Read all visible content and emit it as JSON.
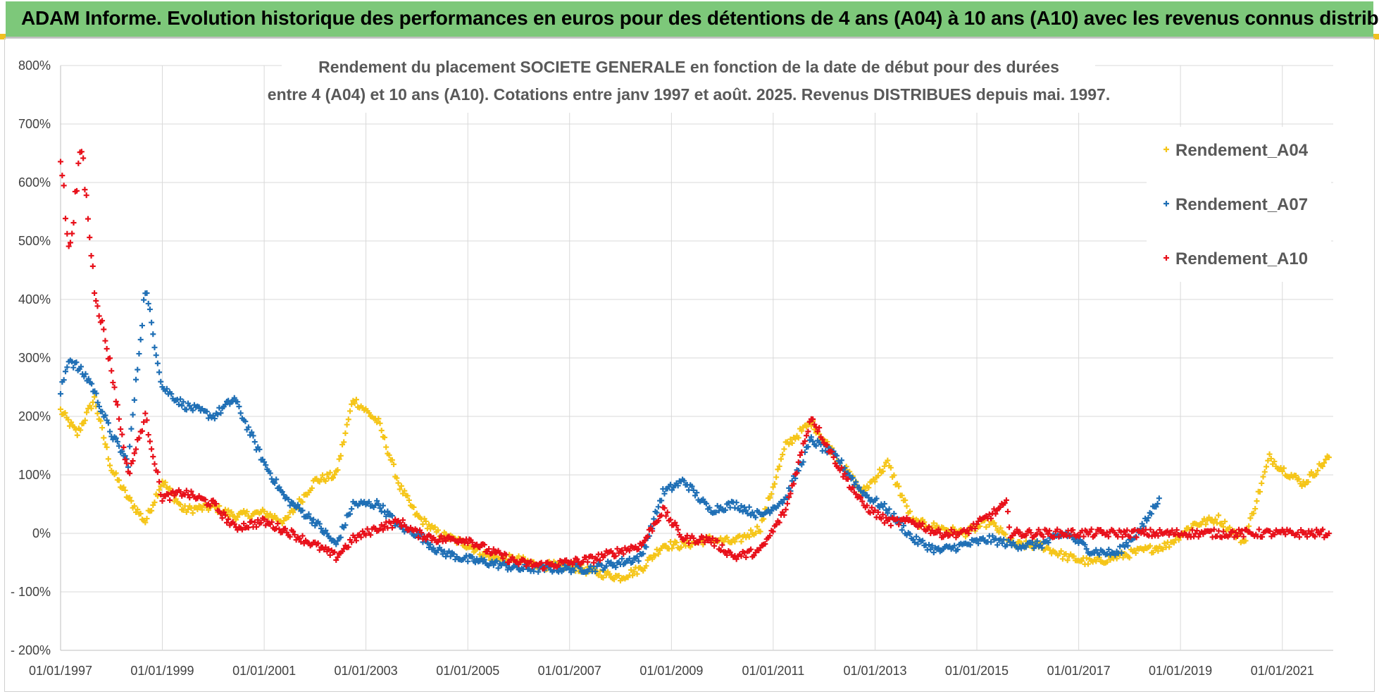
{
  "banner": {
    "title": "ADAM Informe. Evolution historique des performances en euros pour des détentions de 4 ans (A04) à 10 ans (A10) avec les revenus connus distribués"
  },
  "colors": {
    "banner_bg": "#7dc87a",
    "A04": "#f5c518",
    "A07": "#1f6fb5",
    "A10": "#e8101a",
    "grid": "#d9d9d9"
  },
  "chart_data": {
    "type": "scatter",
    "title_line1": "Rendement du placement SOCIETE GENERALE en fonction de la date de début pour des durées",
    "title_line2": "entre 4 (A04) et 10 ans (A10).  Cotations entre janv 1997 et août. 2025. Revenus DISTRIBUES depuis mai. 1997.",
    "xlim": [
      "1997-01-01",
      "2022-01-01"
    ],
    "ylim": [
      -200,
      800
    ],
    "y_ticks": [
      "800%",
      "700%",
      "600%",
      "500%",
      "400%",
      "300%",
      "200%",
      "100%",
      "0%",
      "- 100%",
      "- 200%"
    ],
    "x_ticks": [
      "01/01/1997",
      "01/01/1999",
      "01/01/2001",
      "01/01/2003",
      "01/01/2005",
      "01/01/2007",
      "01/01/2009",
      "01/01/2011",
      "01/01/2013",
      "01/01/2015",
      "01/01/2017",
      "01/01/2019",
      "01/01/2021"
    ],
    "grid": true,
    "legend_position": "top-right",
    "marker": "+",
    "series": [
      {
        "name": "Rendement_A04",
        "color": "#f5c518",
        "points": [
          [
            "1997-01-01",
            210
          ],
          [
            "1997-05-01",
            170
          ],
          [
            "1997-09-01",
            230
          ],
          [
            "1998-01-01",
            110
          ],
          [
            "1998-05-01",
            60
          ],
          [
            "1998-09-01",
            20
          ],
          [
            "1999-01-01",
            90
          ],
          [
            "1999-06-01",
            40
          ],
          [
            "2000-01-01",
            45
          ],
          [
            "2000-06-01",
            30
          ],
          [
            "2001-01-01",
            35
          ],
          [
            "2001-06-01",
            20
          ],
          [
            "2002-01-01",
            90
          ],
          [
            "2002-06-01",
            100
          ],
          [
            "2002-10-01",
            230
          ],
          [
            "2003-04-01",
            190
          ],
          [
            "2003-09-01",
            80
          ],
          [
            "2004-01-01",
            30
          ],
          [
            "2004-06-01",
            0
          ],
          [
            "2005-01-01",
            -20
          ],
          [
            "2005-06-01",
            -40
          ],
          [
            "2006-01-01",
            -45
          ],
          [
            "2006-06-01",
            -55
          ],
          [
            "2007-01-01",
            -55
          ],
          [
            "2007-06-01",
            -65
          ],
          [
            "2008-01-01",
            -75
          ],
          [
            "2008-06-01",
            -60
          ],
          [
            "2008-11-01",
            -20
          ],
          [
            "2009-04-01",
            -20
          ],
          [
            "2009-10-01",
            -10
          ],
          [
            "2010-04-01",
            -15
          ],
          [
            "2010-10-01",
            10
          ],
          [
            "2011-04-01",
            150
          ],
          [
            "2011-10-01",
            190
          ],
          [
            "2012-04-01",
            130
          ],
          [
            "2012-10-01",
            70
          ],
          [
            "2013-04-01",
            120
          ],
          [
            "2013-10-01",
            20
          ],
          [
            "2014-04-01",
            10
          ],
          [
            "2014-10-01",
            0
          ],
          [
            "2015-04-01",
            20
          ],
          [
            "2015-10-01",
            -20
          ],
          [
            "2016-04-01",
            -20
          ],
          [
            "2016-10-01",
            -40
          ],
          [
            "2017-04-01",
            -50
          ],
          [
            "2017-10-01",
            -40
          ],
          [
            "2018-04-01",
            -30
          ],
          [
            "2018-10-01",
            -20
          ],
          [
            "2019-04-01",
            15
          ],
          [
            "2019-10-01",
            25
          ],
          [
            "2020-04-01",
            -15
          ],
          [
            "2020-10-01",
            130
          ],
          [
            "2021-01-01",
            110
          ],
          [
            "2021-06-01",
            85
          ],
          [
            "2021-12-01",
            130
          ]
        ]
      },
      {
        "name": "Rendement_A07",
        "color": "#1f6fb5",
        "points": [
          [
            "1997-01-01",
            240
          ],
          [
            "1997-03-01",
            300
          ],
          [
            "1997-08-01",
            260
          ],
          [
            "1998-01-01",
            170
          ],
          [
            "1998-05-01",
            120
          ],
          [
            "1998-09-01",
            420
          ],
          [
            "1999-01-01",
            250
          ],
          [
            "1999-06-01",
            220
          ],
          [
            "2000-01-01",
            200
          ],
          [
            "2000-06-01",
            230
          ],
          [
            "2001-01-01",
            120
          ],
          [
            "2001-06-01",
            60
          ],
          [
            "2002-01-01",
            20
          ],
          [
            "2002-06-01",
            -20
          ],
          [
            "2002-10-01",
            50
          ],
          [
            "2003-04-01",
            50
          ],
          [
            "2003-09-01",
            10
          ],
          [
            "2004-01-01",
            0
          ],
          [
            "2004-06-01",
            -30
          ],
          [
            "2005-01-01",
            -45
          ],
          [
            "2005-06-01",
            -50
          ],
          [
            "2006-01-01",
            -60
          ],
          [
            "2006-06-01",
            -60
          ],
          [
            "2007-01-01",
            -60
          ],
          [
            "2007-06-01",
            -60
          ],
          [
            "2008-01-01",
            -50
          ],
          [
            "2008-06-01",
            -40
          ],
          [
            "2008-11-01",
            70
          ],
          [
            "2009-04-01",
            90
          ],
          [
            "2009-10-01",
            40
          ],
          [
            "2010-04-01",
            50
          ],
          [
            "2010-10-01",
            30
          ],
          [
            "2011-04-01",
            60
          ],
          [
            "2011-10-01",
            160
          ],
          [
            "2012-04-01",
            130
          ],
          [
            "2012-10-01",
            70
          ],
          [
            "2013-04-01",
            40
          ],
          [
            "2013-10-01",
            -10
          ],
          [
            "2014-04-01",
            -30
          ],
          [
            "2014-10-01",
            -20
          ],
          [
            "2015-04-01",
            -10
          ],
          [
            "2015-10-01",
            -20
          ],
          [
            "2016-04-01",
            -20
          ],
          [
            "2016-10-01",
            0
          ],
          [
            "2017-04-01",
            -30
          ],
          [
            "2017-10-01",
            -35
          ],
          [
            "2018-04-01",
            10
          ],
          [
            "2018-08-01",
            60
          ]
        ]
      },
      {
        "name": "Rendement_A10",
        "color": "#e8101a",
        "points": [
          [
            "1997-01-01",
            650
          ],
          [
            "1997-03-01",
            480
          ],
          [
            "1997-06-01",
            660
          ],
          [
            "1997-09-01",
            420
          ],
          [
            "1998-01-01",
            280
          ],
          [
            "1998-05-01",
            100
          ],
          [
            "1998-09-01",
            200
          ],
          [
            "1999-01-01",
            60
          ],
          [
            "1999-06-01",
            70
          ],
          [
            "2000-01-01",
            50
          ],
          [
            "2000-06-01",
            10
          ],
          [
            "2001-01-01",
            20
          ],
          [
            "2001-06-01",
            5
          ],
          [
            "2002-01-01",
            -20
          ],
          [
            "2002-06-01",
            -40
          ],
          [
            "2002-10-01",
            -10
          ],
          [
            "2003-04-01",
            10
          ],
          [
            "2003-09-01",
            20
          ],
          [
            "2004-01-01",
            0
          ],
          [
            "2004-06-01",
            -10
          ],
          [
            "2005-01-01",
            -10
          ],
          [
            "2005-06-01",
            -30
          ],
          [
            "2006-01-01",
            -50
          ],
          [
            "2006-06-01",
            -55
          ],
          [
            "2007-01-01",
            -50
          ],
          [
            "2007-06-01",
            -45
          ],
          [
            "2008-01-01",
            -30
          ],
          [
            "2008-06-01",
            -20
          ],
          [
            "2008-11-01",
            40
          ],
          [
            "2009-04-01",
            -10
          ],
          [
            "2009-10-01",
            -10
          ],
          [
            "2010-04-01",
            -40
          ],
          [
            "2010-10-01",
            -30
          ],
          [
            "2011-04-01",
            40
          ],
          [
            "2011-10-01",
            200
          ],
          [
            "2012-04-01",
            120
          ],
          [
            "2012-10-01",
            50
          ],
          [
            "2013-04-01",
            20
          ],
          [
            "2013-10-01",
            20
          ],
          [
            "2014-04-01",
            0
          ],
          [
            "2014-10-01",
            0
          ],
          [
            "2015-04-01",
            30
          ],
          [
            "2015-08-01",
            50
          ],
          [
            "2015-09-01",
            0
          ],
          [
            "2021-12-01",
            0
          ]
        ]
      }
    ]
  }
}
